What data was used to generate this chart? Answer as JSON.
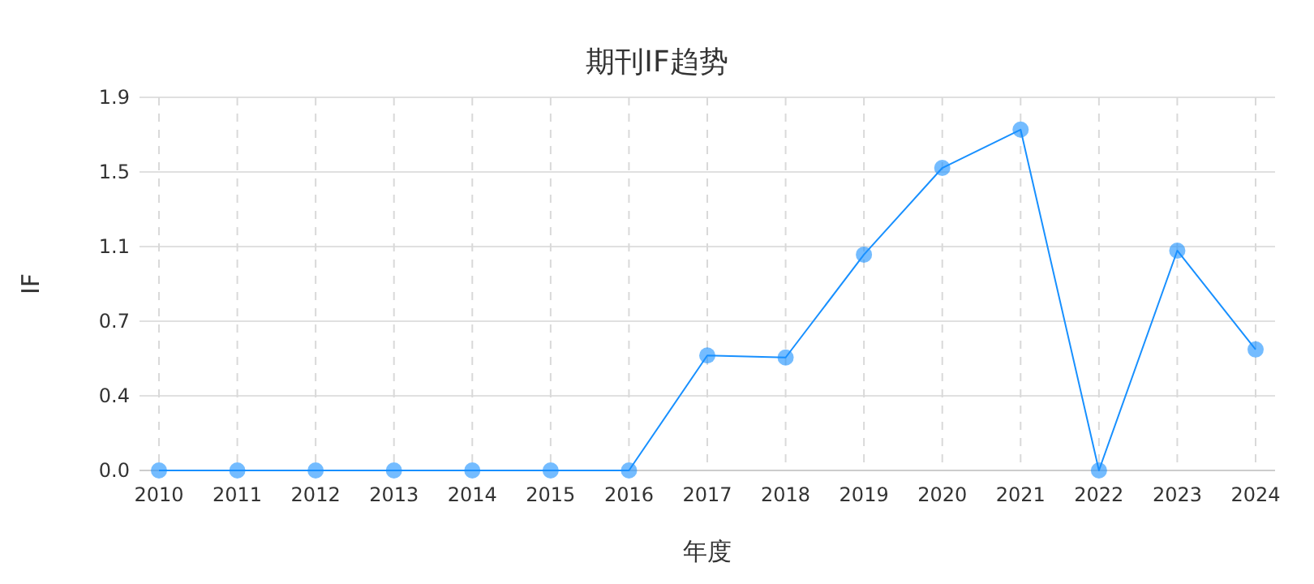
{
  "chart_data": {
    "type": "line",
    "title": "期刊IF趋势",
    "xlabel": "年度",
    "ylabel": "IF",
    "categories": [
      "2010",
      "2011",
      "2012",
      "2013",
      "2014",
      "2015",
      "2016",
      "2017",
      "2018",
      "2019",
      "2020",
      "2021",
      "2022",
      "2023",
      "2024"
    ],
    "series": [
      {
        "color": "#1890ff",
        "values": [
          0,
          0,
          0,
          0,
          0,
          0,
          0,
          0.57,
          0.56,
          1.07,
          1.5,
          1.69,
          0,
          1.09,
          0.6
        ]
      }
    ],
    "ylim": [
      0,
      1.85
    ],
    "yticks": [
      {
        "value": 0,
        "label": "0.0"
      },
      {
        "value": 0.37,
        "label": "0.4"
      },
      {
        "value": 0.74,
        "label": "0.7"
      },
      {
        "value": 1.11,
        "label": "1.1"
      },
      {
        "value": 1.48,
        "label": "1.5"
      },
      {
        "value": 1.85,
        "label": "1.9"
      }
    ],
    "grid": true,
    "marker": "circle",
    "line_style": "solid"
  }
}
